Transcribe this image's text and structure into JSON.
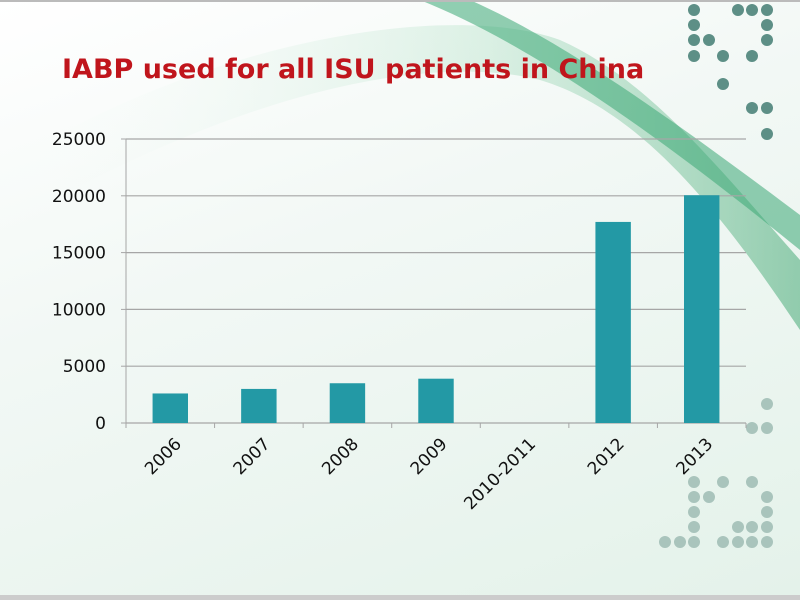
{
  "slide": {
    "title": "IABP used for all ISU patients in China"
  },
  "colors": {
    "bar": "#2399a5",
    "title": "#c0151c",
    "accent": "#2f9a6a"
  },
  "chart_data": {
    "type": "bar",
    "title": "",
    "xlabel": "",
    "ylabel": "",
    "categories": [
      "2006",
      "2007",
      "2008",
      "2009",
      "2010-2011",
      "2012",
      "2013"
    ],
    "values": [
      2600,
      3000,
      3500,
      3900,
      null,
      17700,
      20050
    ],
    "ylim": [
      0,
      25000
    ],
    "yticks": [
      "0",
      "5000",
      "10000",
      "15000",
      "20000",
      "25000"
    ],
    "grid": true,
    "legend": "none"
  }
}
